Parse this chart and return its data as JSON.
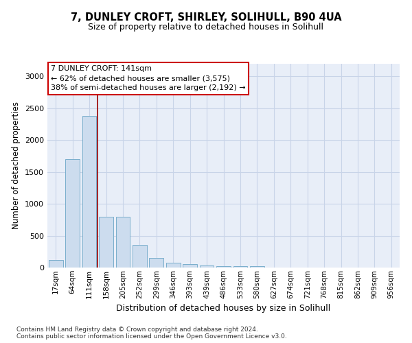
{
  "title1": "7, DUNLEY CROFT, SHIRLEY, SOLIHULL, B90 4UA",
  "title2": "Size of property relative to detached houses in Solihull",
  "xlabel": "Distribution of detached houses by size in Solihull",
  "ylabel": "Number of detached properties",
  "bin_labels": [
    "17sqm",
    "64sqm",
    "111sqm",
    "158sqm",
    "205sqm",
    "252sqm",
    "299sqm",
    "346sqm",
    "393sqm",
    "439sqm",
    "486sqm",
    "533sqm",
    "580sqm",
    "627sqm",
    "674sqm",
    "721sqm",
    "768sqm",
    "815sqm",
    "862sqm",
    "909sqm",
    "956sqm"
  ],
  "bar_values": [
    120,
    1700,
    2380,
    800,
    800,
    350,
    150,
    80,
    50,
    30,
    25,
    20,
    20,
    0,
    0,
    0,
    0,
    0,
    0,
    0,
    0
  ],
  "bar_color": "#ccdcee",
  "bar_edge_color": "#7aaecc",
  "bar_width": 0.85,
  "ylim": [
    0,
    3200
  ],
  "yticks": [
    0,
    500,
    1000,
    1500,
    2000,
    2500,
    3000
  ],
  "annotation_text": "7 DUNLEY CROFT: 141sqm\n← 62% of detached houses are smaller (3,575)\n38% of semi-detached houses are larger (2,192) →",
  "annotation_box_color": "#ffffff",
  "annotation_box_edge": "#cc0000",
  "footer_text": "Contains HM Land Registry data © Crown copyright and database right 2024.\nContains public sector information licensed under the Open Government Licence v3.0.",
  "grid_color": "#c8d4e8",
  "axes_bg_color": "#e8eef8"
}
